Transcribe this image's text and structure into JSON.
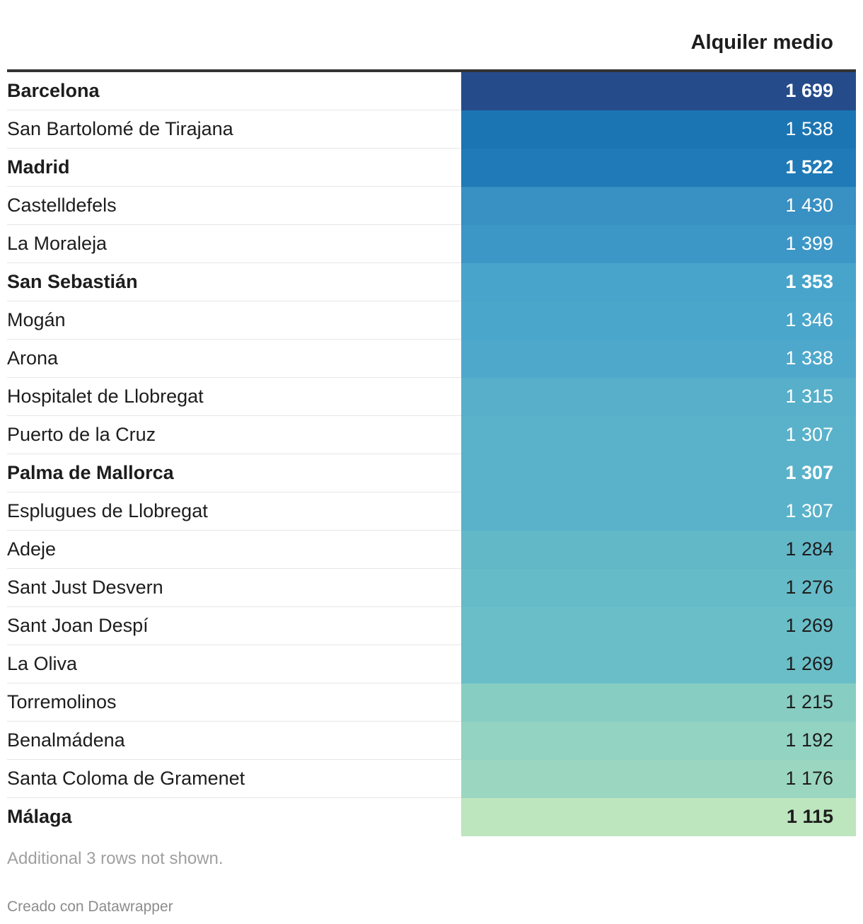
{
  "chart_data": {
    "type": "table",
    "column_header": "Alquiler medio",
    "rows": [
      {
        "name": "Barcelona",
        "value": 1699,
        "display": "1 699",
        "bold": true,
        "bg": "#264b8b",
        "fg": "#ffffff"
      },
      {
        "name": "San Bartolomé de Tirajana",
        "value": 1538,
        "display": "1 538",
        "bold": false,
        "bg": "#1c75b3",
        "fg": "#ffffff"
      },
      {
        "name": "Madrid",
        "value": 1522,
        "display": "1 522",
        "bold": true,
        "bg": "#1f7ab7",
        "fg": "#ffffff"
      },
      {
        "name": "Castelldefels",
        "value": 1430,
        "display": "1 430",
        "bold": false,
        "bg": "#3890c3",
        "fg": "#ffffff"
      },
      {
        "name": "La Moraleja",
        "value": 1399,
        "display": "1 399",
        "bold": false,
        "bg": "#3d97c6",
        "fg": "#ffffff"
      },
      {
        "name": "San Sebastián",
        "value": 1353,
        "display": "1 353",
        "bold": true,
        "bg": "#48a4cb",
        "fg": "#ffffff"
      },
      {
        "name": "Mogán",
        "value": 1346,
        "display": "1 346",
        "bold": false,
        "bg": "#4ba6cb",
        "fg": "#ffffff"
      },
      {
        "name": "Arona",
        "value": 1338,
        "display": "1 338",
        "bold": false,
        "bg": "#4ea8cb",
        "fg": "#ffffff"
      },
      {
        "name": "Hospitalet de Llobregat",
        "value": 1315,
        "display": "1 315",
        "bold": false,
        "bg": "#57afca",
        "fg": "#ffffff"
      },
      {
        "name": "Puerto de la Cruz",
        "value": 1307,
        "display": "1 307",
        "bold": false,
        "bg": "#5ab2ca",
        "fg": "#ffffff"
      },
      {
        "name": "Palma de Mallorca",
        "value": 1307,
        "display": "1 307",
        "bold": true,
        "bg": "#5ab2ca",
        "fg": "#ffffff"
      },
      {
        "name": "Esplugues de Llobregat",
        "value": 1307,
        "display": "1 307",
        "bold": false,
        "bg": "#5ab2ca",
        "fg": "#ffffff"
      },
      {
        "name": "Adeje",
        "value": 1284,
        "display": "1 284",
        "bold": false,
        "bg": "#63b8c8",
        "fg": "#1d1d1d"
      },
      {
        "name": "Sant Just Desvern",
        "value": 1276,
        "display": "1 276",
        "bold": false,
        "bg": "#66bbc8",
        "fg": "#1d1d1d"
      },
      {
        "name": "Sant Joan Despí",
        "value": 1269,
        "display": "1 269",
        "bold": false,
        "bg": "#69bec8",
        "fg": "#1d1d1d"
      },
      {
        "name": "La Oliva",
        "value": 1269,
        "display": "1 269",
        "bold": false,
        "bg": "#69bec8",
        "fg": "#1d1d1d"
      },
      {
        "name": "Torremolinos",
        "value": 1215,
        "display": "1 215",
        "bold": false,
        "bg": "#87cdc2",
        "fg": "#1d1d1d"
      },
      {
        "name": "Benalmádena",
        "value": 1192,
        "display": "1 192",
        "bold": false,
        "bg": "#93d3c1",
        "fg": "#1d1d1d"
      },
      {
        "name": "Santa Coloma de Gramenet",
        "value": 1176,
        "display": "1 176",
        "bold": false,
        "bg": "#9bd7c0",
        "fg": "#1d1d1d"
      },
      {
        "name": "Málaga",
        "value": 1115,
        "display": "1 115",
        "bold": true,
        "bg": "#bde5be",
        "fg": "#1d1d1d"
      }
    ]
  },
  "footnote": "Additional 3 rows not shown.",
  "credit": "Creado con Datawrapper"
}
